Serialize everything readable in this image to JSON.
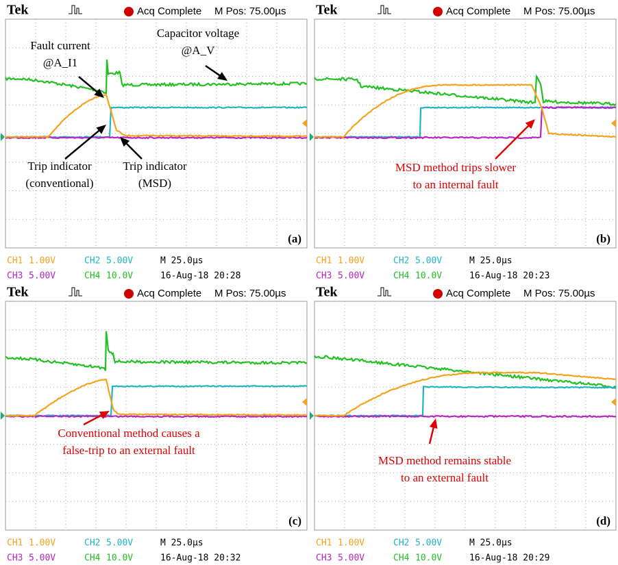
{
  "panels": [
    {
      "header": {
        "brand": "Tek",
        "status": "Acq Complete",
        "position": "M Pos: 75.00µs"
      },
      "label": "(a)",
      "channels": [
        {
          "name": "CH1",
          "scale": "1.00V"
        },
        {
          "name": "CH2",
          "scale": "5.00V"
        },
        {
          "name": "CH3",
          "scale": "5.00V"
        },
        {
          "name": "CH4",
          "scale": "10.0V"
        }
      ],
      "timebase": "M 25.0µs",
      "timestamp": "16-Aug-18 20:28",
      "annotations": [
        {
          "lines": [
            "Fault current",
            "@A_I1"
          ]
        },
        {
          "lines": [
            "Capacitor voltage",
            "@A_V"
          ]
        },
        {
          "lines": [
            "Trip indicator",
            "(conventional)"
          ]
        },
        {
          "lines": [
            "Trip indicator",
            "(MSD)"
          ]
        }
      ]
    },
    {
      "header": {
        "brand": "Tek",
        "status": "Acq Complete",
        "position": "M Pos: 75.00µs"
      },
      "label": "(b)",
      "channels": [
        {
          "name": "CH1",
          "scale": "1.00V"
        },
        {
          "name": "CH2",
          "scale": "5.00V"
        },
        {
          "name": "CH3",
          "scale": "5.00V"
        },
        {
          "name": "CH4",
          "scale": "10.0V"
        }
      ],
      "timebase": "M 25.0µs",
      "timestamp": "16-Aug-18 20:23",
      "annotations": [
        {
          "lines": [
            "MSD method trips slower",
            "to an internal fault"
          ]
        }
      ]
    },
    {
      "header": {
        "brand": "Tek",
        "status": "Acq Complete",
        "position": "M Pos: 75.00µs"
      },
      "label": "(c)",
      "channels": [
        {
          "name": "CH1",
          "scale": "1.00V"
        },
        {
          "name": "CH2",
          "scale": "5.00V"
        },
        {
          "name": "CH3",
          "scale": "5.00V"
        },
        {
          "name": "CH4",
          "scale": "10.0V"
        }
      ],
      "timebase": "M 25.0µs",
      "timestamp": "16-Aug-18 20:32",
      "annotations": [
        {
          "lines": [
            "Conventional method causes a",
            "false-trip to an external fault"
          ]
        }
      ]
    },
    {
      "header": {
        "brand": "Tek",
        "status": "Acq Complete",
        "position": "M Pos: 75.00µs"
      },
      "label": "(d)",
      "channels": [
        {
          "name": "CH1",
          "scale": "1.00V"
        },
        {
          "name": "CH2",
          "scale": "5.00V"
        },
        {
          "name": "CH3",
          "scale": "5.00V"
        },
        {
          "name": "CH4",
          "scale": "10.0V"
        }
      ],
      "timebase": "M 25.0µs",
      "timestamp": "16-Aug-18 20:29",
      "annotations": [
        {
          "lines": [
            "MSD method remains stable",
            "to an external fault"
          ]
        }
      ]
    }
  ]
}
